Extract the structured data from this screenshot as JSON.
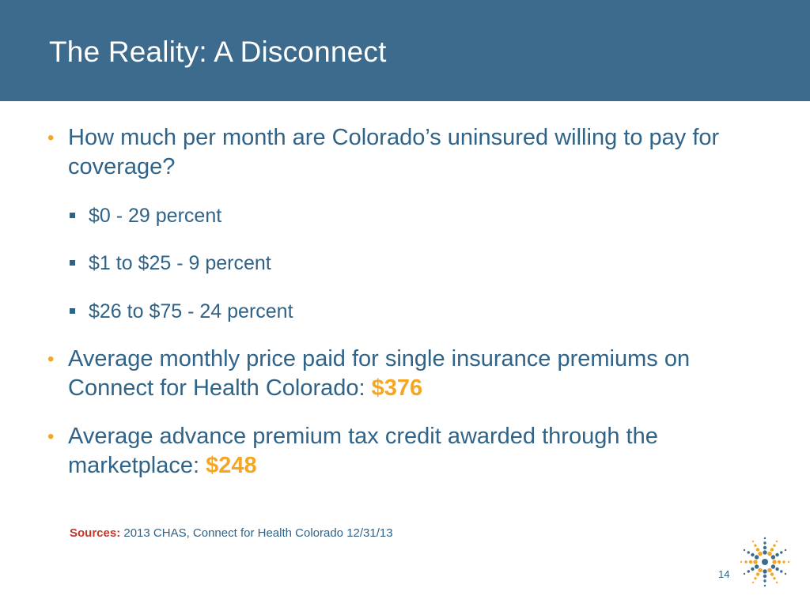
{
  "slide": {
    "title": "The Reality: A Disconnect",
    "bullet1": {
      "marker": "•",
      "text": "How much per month are Colorado’s uninsured willing to pay for coverage?"
    },
    "subitems": [
      {
        "text": "$0 - 29 percent"
      },
      {
        "text": "$1 to $25 - 9 percent"
      },
      {
        "text": "$26 to $75 - 24 percent"
      }
    ],
    "bullet2": {
      "marker": "•",
      "text": "Average monthly price paid for single insurance premiums on Connect for Health Colorado: ",
      "value": "$376"
    },
    "bullet3": {
      "marker": "•",
      "text": "Average advance premium tax credit awarded through the marketplace: ",
      "value": "$248"
    },
    "sources": {
      "label": "Sources:",
      "text": " 2013 CHAS, Connect for Health Colorado 12/31/13"
    },
    "page_number": "14"
  },
  "colors": {
    "header_bg": "#3c6b8e",
    "body_text": "#2f6388",
    "accent": "#f5a623",
    "sources_label": "#c0392b"
  },
  "icons": {
    "logo": "starburst-logo-icon"
  }
}
